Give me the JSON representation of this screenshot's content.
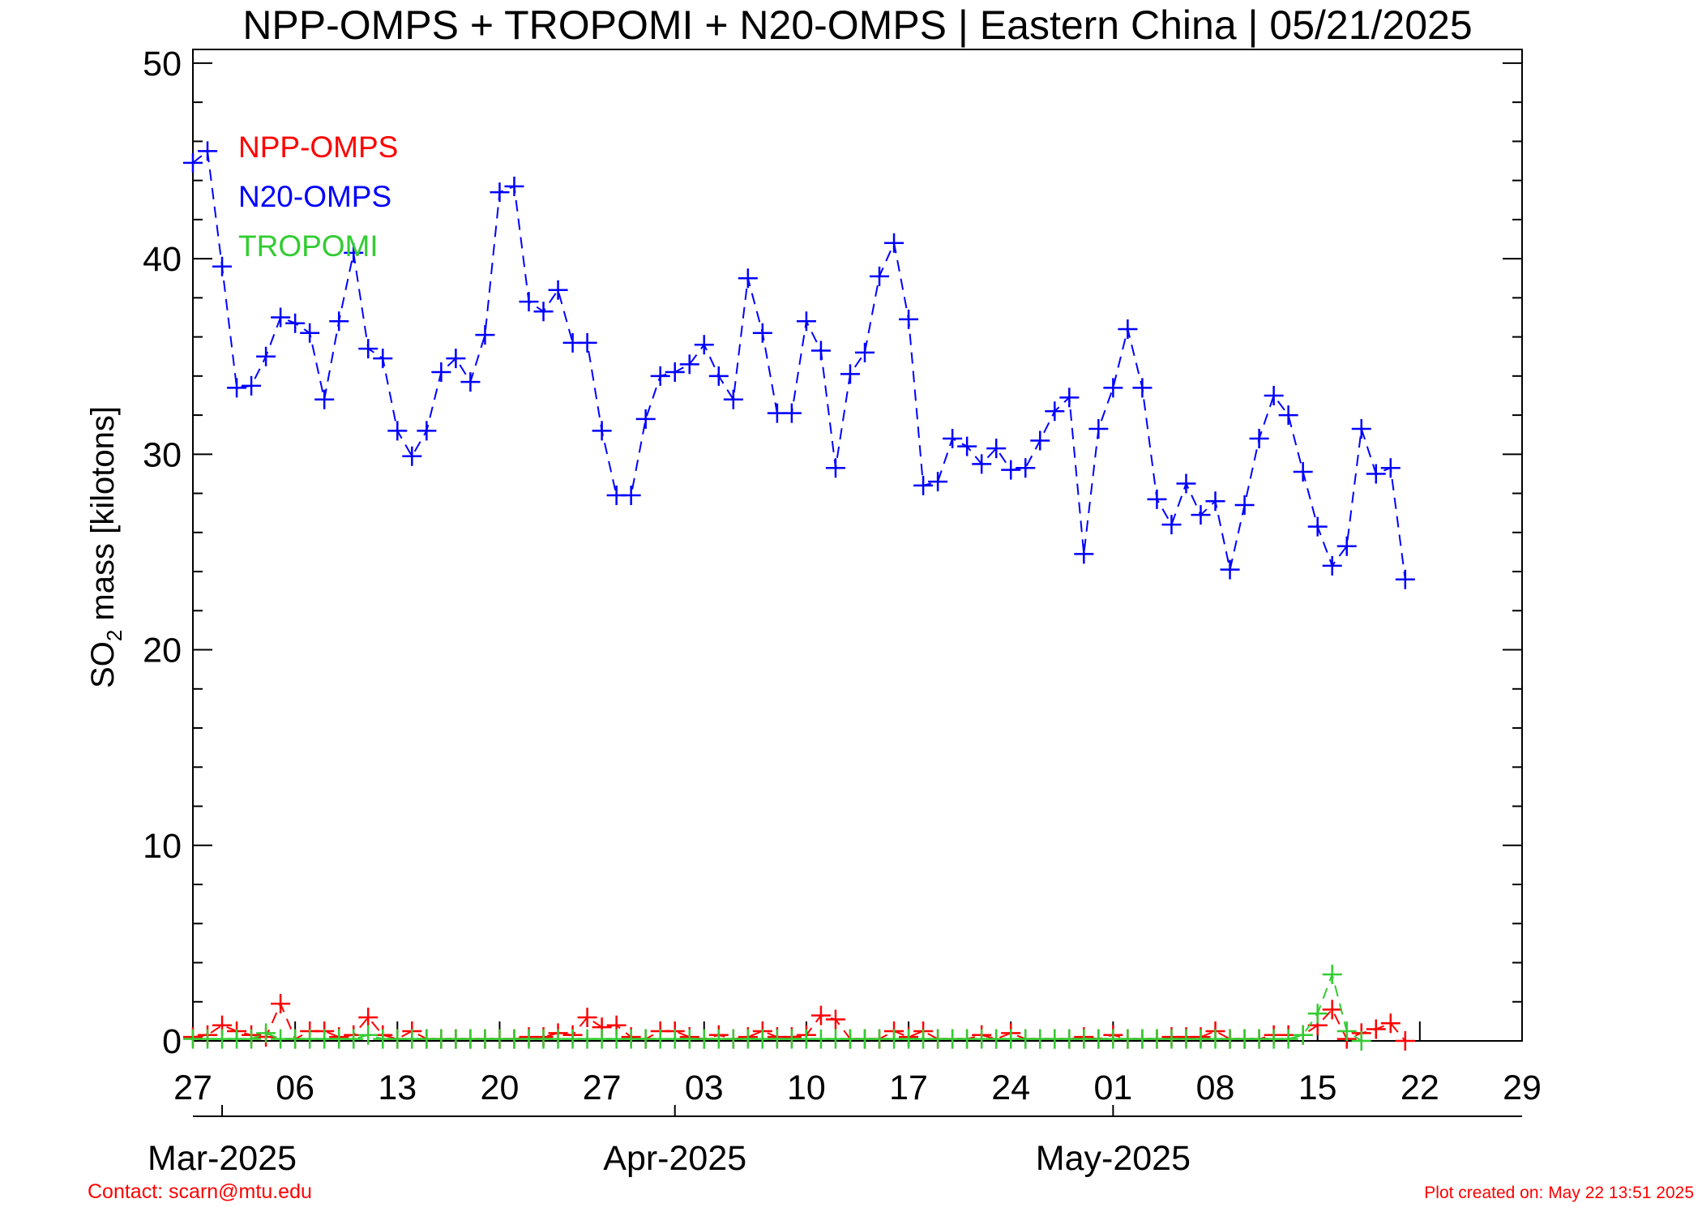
{
  "chart_data": {
    "type": "line",
    "title": "NPP-OMPS + TROPOMI + N20-OMPS | Eastern China | 05/21/2025",
    "y_label": {
      "main": "SO",
      "sub": "2",
      "rest": " mass [kilotons]"
    },
    "xlim": [
      "2025-02-27",
      "2025-05-29"
    ],
    "xticks": [
      {
        "value": "2025-02-27",
        "label": "27"
      },
      {
        "value": "2025-03-06",
        "label": "06"
      },
      {
        "value": "2025-03-13",
        "label": "13"
      },
      {
        "value": "2025-03-20",
        "label": "20"
      },
      {
        "value": "2025-03-27",
        "label": "27"
      },
      {
        "value": "2025-04-03",
        "label": "03"
      },
      {
        "value": "2025-04-10",
        "label": "10"
      },
      {
        "value": "2025-04-17",
        "label": "17"
      },
      {
        "value": "2025-04-24",
        "label": "24"
      },
      {
        "value": "2025-05-01",
        "label": "01"
      },
      {
        "value": "2025-05-08",
        "label": "08"
      },
      {
        "value": "2025-05-15",
        "label": "15"
      },
      {
        "value": "2025-05-22",
        "label": "22"
      },
      {
        "value": "2025-05-29",
        "label": "29"
      }
    ],
    "month_ticks": [
      {
        "value": "2025-03-01",
        "label": "Mar-2025"
      },
      {
        "value": "2025-04-01",
        "label": "Apr-2025"
      },
      {
        "value": "2025-05-01",
        "label": "May-2025"
      }
    ],
    "ylim": [
      0,
      50.7
    ],
    "yticks": [
      0,
      10,
      20,
      30,
      40,
      50
    ],
    "yminorticks": [
      2,
      4,
      6,
      8,
      12,
      14,
      16,
      18,
      22,
      24,
      26,
      28,
      32,
      34,
      36,
      38,
      42,
      44,
      46,
      48,
      50.7
    ],
    "legend": "upper left",
    "x": [
      "2025-02-27",
      "2025-02-28",
      "2025-03-01",
      "2025-03-02",
      "2025-03-03",
      "2025-03-04",
      "2025-03-05",
      "2025-03-06",
      "2025-03-07",
      "2025-03-08",
      "2025-03-09",
      "2025-03-10",
      "2025-03-11",
      "2025-03-12",
      "2025-03-13",
      "2025-03-14",
      "2025-03-15",
      "2025-03-16",
      "2025-03-17",
      "2025-03-18",
      "2025-03-19",
      "2025-03-20",
      "2025-03-21",
      "2025-03-22",
      "2025-03-23",
      "2025-03-24",
      "2025-03-25",
      "2025-03-26",
      "2025-03-27",
      "2025-03-28",
      "2025-03-29",
      "2025-03-30",
      "2025-03-31",
      "2025-04-01",
      "2025-04-02",
      "2025-04-03",
      "2025-04-04",
      "2025-04-05",
      "2025-04-06",
      "2025-04-07",
      "2025-04-08",
      "2025-04-09",
      "2025-04-10",
      "2025-04-11",
      "2025-04-12",
      "2025-04-13",
      "2025-04-14",
      "2025-04-15",
      "2025-04-16",
      "2025-04-17",
      "2025-04-18",
      "2025-04-19",
      "2025-04-20",
      "2025-04-21",
      "2025-04-22",
      "2025-04-23",
      "2025-04-24",
      "2025-04-25",
      "2025-04-26",
      "2025-04-27",
      "2025-04-28",
      "2025-04-29",
      "2025-04-30",
      "2025-05-01",
      "2025-05-02",
      "2025-05-03",
      "2025-05-04",
      "2025-05-05",
      "2025-05-06",
      "2025-05-07",
      "2025-05-08",
      "2025-05-09",
      "2025-05-10",
      "2025-05-11",
      "2025-05-12",
      "2025-05-13",
      "2025-05-14",
      "2025-05-15",
      "2025-05-16",
      "2025-05-17",
      "2025-05-18",
      "2025-05-19",
      "2025-05-20",
      "2025-05-21"
    ],
    "series": [
      {
        "name": "NPP-OMPS",
        "color": "#ff0000",
        "values": [
          0.2,
          0.3,
          0.8,
          0.5,
          0.3,
          0.2,
          1.9,
          0.1,
          0.5,
          0.5,
          0.2,
          0.3,
          1.2,
          0.3,
          0.1,
          0.5,
          0.1,
          0.1,
          0.1,
          0.1,
          0.1,
          0.1,
          0.1,
          0.2,
          0.2,
          0.4,
          0.3,
          1.2,
          0.7,
          0.8,
          0.2,
          0.1,
          0.5,
          0.5,
          0.2,
          0.1,
          0.3,
          0.1,
          0.2,
          0.5,
          0.2,
          0.2,
          0.3,
          1.3,
          1.1,
          0.1,
          0.1,
          0.1,
          0.5,
          0.2,
          0.5,
          0.1,
          0.1,
          0.1,
          0.3,
          0.1,
          0.4,
          0.1,
          0.1,
          0.1,
          0.1,
          0.2,
          0.1,
          0.3,
          0.1,
          0.1,
          0.1,
          0.2,
          0.2,
          0.2,
          0.5,
          0.1,
          0.1,
          0.1,
          0.3,
          0.3,
          0.3,
          0.8,
          1.6,
          0.1,
          0.4,
          0.6,
          0.9,
          0.0
        ]
      },
      {
        "name": "N20-OMPS",
        "color": "#0000ff",
        "values": [
          44.9,
          45.5,
          39.6,
          33.4,
          33.5,
          35.0,
          37.0,
          36.7,
          36.2,
          32.8,
          36.8,
          40.3,
          35.4,
          34.9,
          31.2,
          29.9,
          31.2,
          34.2,
          34.9,
          33.7,
          36.1,
          43.4,
          43.7,
          37.8,
          37.3,
          38.4,
          35.7,
          35.7,
          31.2,
          27.9,
          27.9,
          31.8,
          34.0,
          34.2,
          34.6,
          35.6,
          34.0,
          32.8,
          39.0,
          36.2,
          32.1,
          32.1,
          36.8,
          35.3,
          29.3,
          34.1,
          35.2,
          39.1,
          40.8,
          36.9,
          28.4,
          28.6,
          30.8,
          30.4,
          29.5,
          30.3,
          29.2,
          29.3,
          30.7,
          32.2,
          32.9,
          24.9,
          31.3,
          33.4,
          36.4,
          33.4,
          27.7,
          26.4,
          28.5,
          26.9,
          27.6,
          24.1,
          27.4,
          30.8,
          33.0,
          32.0,
          29.1,
          26.3,
          24.3,
          25.3,
          31.3,
          29.0,
          29.3,
          23.6
        ]
      },
      {
        "name": "TROPOMI",
        "color": "#33cc33",
        "values": [
          0.1,
          0.1,
          0.1,
          0.1,
          0.1,
          0.4,
          0.1,
          0.1,
          0.1,
          0.1,
          0.1,
          0.1,
          0.3,
          0.1,
          0.1,
          0.1,
          0.1,
          0.1,
          0.1,
          0.1,
          0.1,
          0.1,
          0.1,
          0.1,
          0.1,
          0.1,
          0.1,
          0.1,
          0.1,
          0.1,
          0.1,
          0.1,
          0.1,
          0.1,
          0.1,
          0.1,
          0.1,
          0.1,
          0.1,
          0.1,
          0.1,
          0.1,
          0.1,
          0.1,
          0.1,
          0.1,
          0.1,
          0.1,
          0.1,
          0.1,
          0.1,
          0.1,
          0.1,
          0.1,
          0.1,
          0.1,
          0.1,
          0.1,
          0.1,
          0.1,
          0.1,
          0.1,
          0.1,
          0.1,
          0.1,
          0.1,
          0.1,
          0.1,
          0.1,
          0.1,
          0.1,
          0.1,
          0.1,
          0.1,
          0.1,
          0.1,
          0.3,
          1.4,
          3.4,
          0.5,
          0.0,
          null,
          null,
          null
        ]
      }
    ]
  },
  "footer": {
    "contact": "Contact: scarn@mtu.edu",
    "created": "Plot created on: May 22 13:51 2025"
  }
}
